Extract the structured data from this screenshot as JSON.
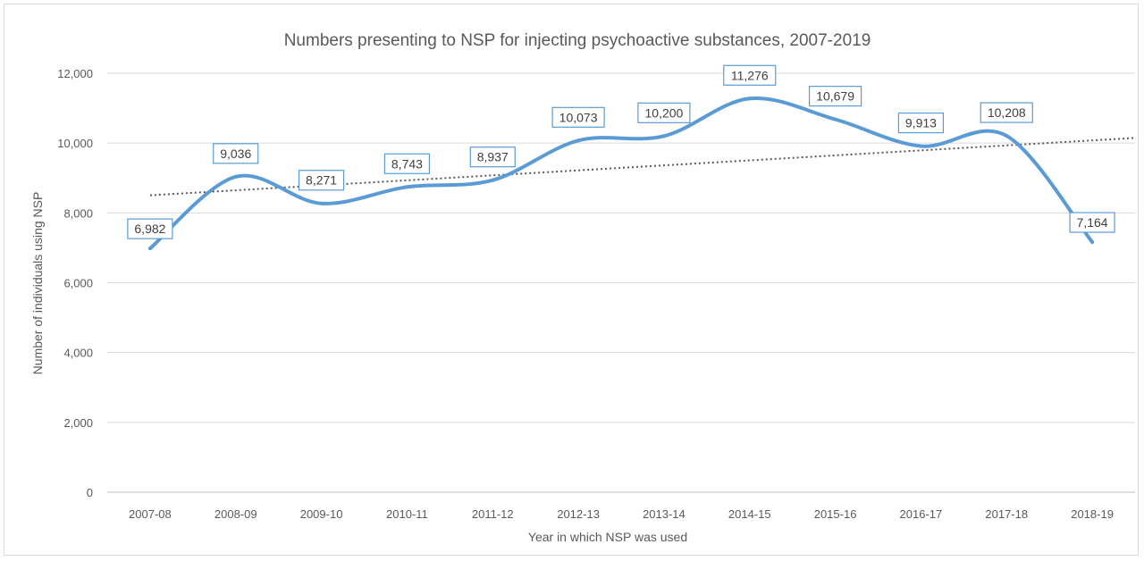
{
  "chart_data": {
    "type": "line",
    "title": "Numbers presenting to NSP for injecting psychoactive substances, 2007-2019",
    "xlabel": "Year in which NSP was used",
    "ylabel": "Number of individuals using NSP",
    "categories": [
      "2007-08",
      "2008-09",
      "2009-10",
      "2010-11",
      "2011-12",
      "2012-13",
      "2013-14",
      "2014-15",
      "2015-16",
      "2016-17",
      "2017-18",
      "2018-19"
    ],
    "series": [
      {
        "values": [
          6982,
          9036,
          8271,
          8743,
          8937,
          10073,
          10200,
          11276,
          10679,
          9913,
          10208,
          7164
        ],
        "labels": [
          "6,982",
          "9,036",
          "8,271",
          "8,743",
          "8,937",
          "10,073",
          "10,200",
          "11,276",
          "10,679",
          "9,913",
          "10,208",
          "7,164"
        ],
        "color": "#5b9bd5",
        "smooth": true
      }
    ],
    "trendline": {
      "type": "linear",
      "style": "dotted",
      "color": "#595959"
    },
    "ylim": [
      0,
      12000
    ],
    "yticks": [
      0,
      2000,
      4000,
      6000,
      8000,
      10000,
      12000
    ],
    "ytick_labels": [
      "0",
      "2,000",
      "4,000",
      "6,000",
      "8,000",
      "10,000",
      "12,000"
    ],
    "grid": true,
    "legend": "none"
  }
}
